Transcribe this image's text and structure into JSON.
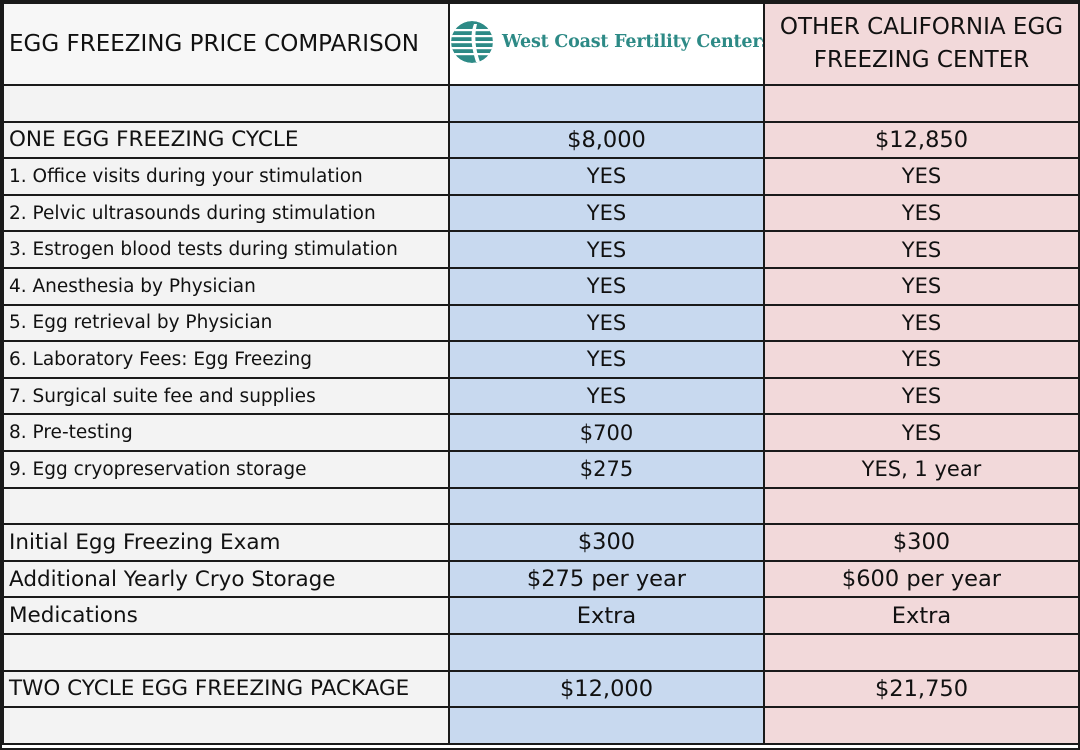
{
  "header": {
    "title": "EGG FREEZING PRICE COMPARISON",
    "col_wc_logo_text": "West Coast Fertility Centers",
    "col_other": "OTHER CALIFORNIA EGG FREEZING CENTER",
    "logo_icon": "circle-logo-icon",
    "logo_color": "#2d8a86"
  },
  "rows": [
    {
      "label": "",
      "wc": "",
      "other": "",
      "style": "blank"
    },
    {
      "label": "ONE EGG FREEZING CYCLE",
      "wc": "$8,000",
      "other": "$12,850",
      "style": "big"
    },
    {
      "label": "1. Office visits during your stimulation",
      "wc": "YES",
      "other": "YES",
      "style": "item"
    },
    {
      "label": "2. Pelvic ultrasounds during stimulation",
      "wc": "YES",
      "other": "YES",
      "style": "item"
    },
    {
      "label": "3. Estrogen blood tests during stimulation",
      "wc": "YES",
      "other": "YES",
      "style": "item"
    },
    {
      "label": "4. Anesthesia by Physician",
      "wc": "YES",
      "other": "YES",
      "style": "item"
    },
    {
      "label": "5. Egg retrieval by Physician",
      "wc": "YES",
      "other": "YES",
      "style": "item"
    },
    {
      "label": "6. Laboratory Fees: Egg Freezing",
      "wc": "YES",
      "other": "YES",
      "style": "item"
    },
    {
      "label": "7. Surgical suite fee and supplies",
      "wc": "YES",
      "other": "YES",
      "style": "item"
    },
    {
      "label": "8. Pre-testing",
      "wc": "$700",
      "other": "YES",
      "style": "item"
    },
    {
      "label": "9. Egg cryopreservation storage",
      "wc": "$275",
      "other": "YES, 1 year",
      "style": "item"
    },
    {
      "label": "",
      "wc": "",
      "other": "",
      "style": "blank"
    },
    {
      "label": "Initial Egg Freezing Exam",
      "wc": "$300",
      "other": "$300",
      "style": "big"
    },
    {
      "label": "Additional Yearly Cryo Storage",
      "wc": "$275 per year",
      "other": "$600 per year",
      "style": "big"
    },
    {
      "label": "Medications",
      "wc": "Extra",
      "other": "Extra",
      "style": "big"
    },
    {
      "label": "",
      "wc": "",
      "other": "",
      "style": "blank"
    },
    {
      "label": "TWO CYCLE EGG FREEZING PACKAGE",
      "wc": "$12,000",
      "other": "$21,750",
      "style": "big"
    },
    {
      "label": "",
      "wc": "",
      "other": "",
      "style": "blank"
    }
  ]
}
